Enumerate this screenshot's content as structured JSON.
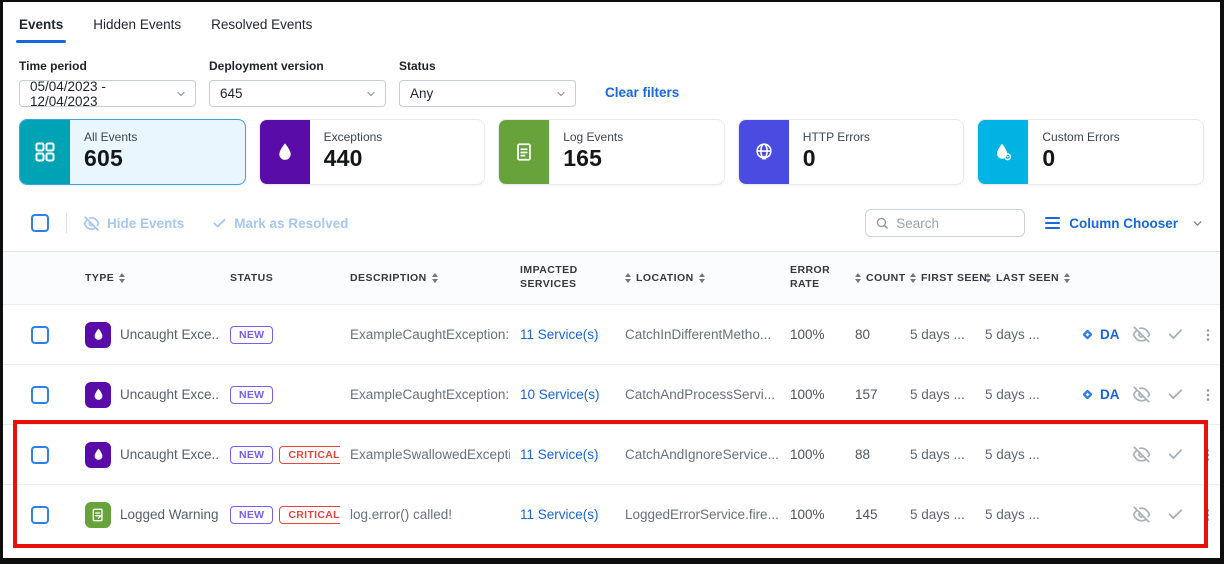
{
  "tabs": [
    {
      "label": "Events",
      "active": true
    },
    {
      "label": "Hidden Events",
      "active": false
    },
    {
      "label": "Resolved Events",
      "active": false
    }
  ],
  "filters": [
    {
      "label": "Time period",
      "value": "05/04/2023 - 12/04/2023"
    },
    {
      "label": "Deployment version",
      "value": "645"
    },
    {
      "label": "Status",
      "value": "Any"
    }
  ],
  "clear_filters_label": "Clear filters",
  "cards": [
    {
      "label": "All Events",
      "value": "605",
      "color": "#00a3b4",
      "icon": "grid",
      "selected": true
    },
    {
      "label": "Exceptions",
      "value": "440",
      "color": "#5a0ca8",
      "icon": "drop",
      "selected": false
    },
    {
      "label": "Log Events",
      "value": "165",
      "color": "#67a23a",
      "icon": "document",
      "selected": false
    },
    {
      "label": "HTTP Errors",
      "value": "0",
      "color": "#4a4be0",
      "icon": "globe",
      "selected": false
    },
    {
      "label": "Custom Errors",
      "value": "0",
      "color": "#00b3e3",
      "icon": "drop-gear",
      "selected": false
    }
  ],
  "toolbar": {
    "hide_events_label": "Hide Events",
    "mark_resolved_label": "Mark as Resolved",
    "search_placeholder": "Search",
    "column_chooser_label": "Column Chooser"
  },
  "table": {
    "columns": [
      {
        "label": "TYPE",
        "sort_left": false,
        "sort_right": true,
        "two_line": false
      },
      {
        "label": "STATUS",
        "sort_left": false,
        "sort_right": false,
        "two_line": false
      },
      {
        "label": "DESCRIPTION",
        "sort_left": false,
        "sort_right": true,
        "two_line": false
      },
      {
        "label": "IMPACTED SERVICES",
        "sort_left": false,
        "sort_right": false,
        "two_line": true
      },
      {
        "label": "LOCATION",
        "sort_left": true,
        "sort_right": true,
        "two_line": false
      },
      {
        "label": "ERROR RATE",
        "sort_left": false,
        "sort_right": false,
        "two_line": true
      },
      {
        "label": "COUNT",
        "sort_left": true,
        "sort_right": false,
        "two_line": false
      },
      {
        "label": "FIRST SEEN",
        "sort_left": true,
        "sort_right": false,
        "two_line": false
      },
      {
        "label": "LAST SEEN",
        "sort_left": true,
        "sort_right": true,
        "two_line": false
      }
    ],
    "rows": [
      {
        "type_label": "Uncaught Exce...",
        "type_icon": "exception",
        "badges": [
          "NEW"
        ],
        "description": "ExampleCaughtException: ...",
        "services": "11 Service(s)",
        "location": "CatchInDifferentMetho...",
        "error_rate": "100%",
        "count": "80",
        "first_seen": "5 days ...",
        "last_seen": "5 days ...",
        "integration": "DA...",
        "highlighted": false
      },
      {
        "type_label": "Uncaught Exce...",
        "type_icon": "exception",
        "badges": [
          "NEW"
        ],
        "description": "ExampleCaughtException: t...",
        "services": "10 Service(s)",
        "location": "CatchAndProcessServi...",
        "error_rate": "100%",
        "count": "157",
        "first_seen": "5 days ...",
        "last_seen": "5 days ...",
        "integration": "DA...",
        "highlighted": false
      },
      {
        "type_label": "Uncaught Exce...",
        "type_icon": "exception",
        "badges": [
          "NEW",
          "CRITICAL"
        ],
        "description": "ExampleSwallowedExceptio...",
        "services": "11 Service(s)",
        "location": "CatchAndIgnoreService...",
        "error_rate": "100%",
        "count": "88",
        "first_seen": "5 days ...",
        "last_seen": "5 days ...",
        "integration": null,
        "highlighted": true
      },
      {
        "type_label": "Logged Warning",
        "type_icon": "log",
        "badges": [
          "NEW",
          "CRITICAL"
        ],
        "description": "log.error() called!",
        "services": "11 Service(s)",
        "location": "LoggedErrorService.fire...",
        "error_rate": "100%",
        "count": "145",
        "first_seen": "5 days ...",
        "last_seen": "5 days ...",
        "integration": null,
        "highlighted": true
      }
    ]
  },
  "colors": {
    "accent_blue": "#1868db",
    "link_blue": "#1765d8",
    "badge_new": "#7a5cf0",
    "badge_critical": "#e5463b",
    "type_exception": "#5a0ca8",
    "type_log": "#67a23a",
    "highlight_red": "#e8120d"
  }
}
